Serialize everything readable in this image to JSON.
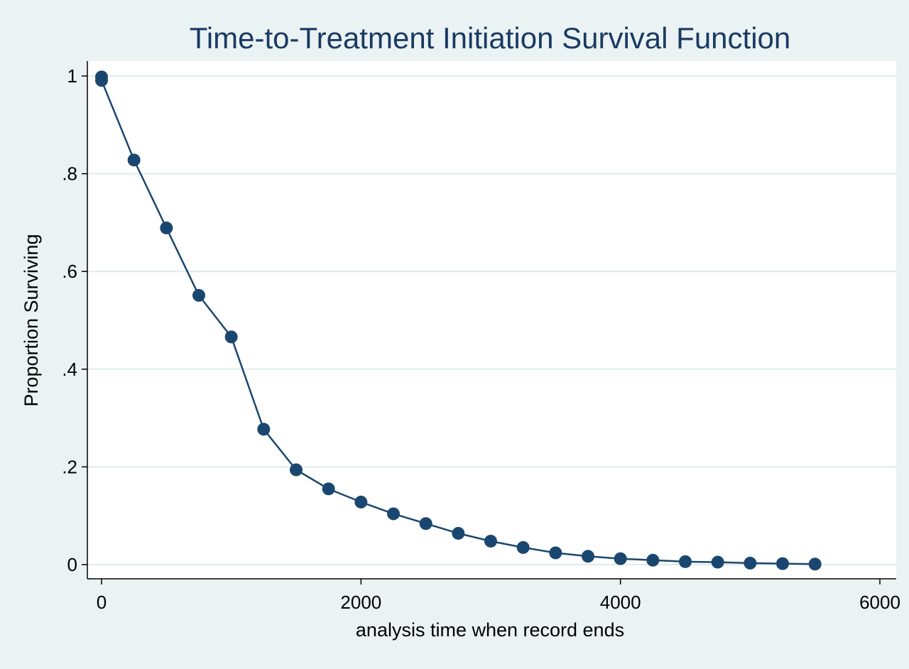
{
  "chart_data": {
    "type": "line",
    "title": "Time-to-Treatment Initiation Survival Function",
    "xlabel": "analysis time when record ends",
    "ylabel": "Proportion Surviving",
    "xlim": [
      0,
      6000
    ],
    "ylim": [
      0,
      1
    ],
    "x_ticks": [
      0,
      2000,
      4000,
      6000
    ],
    "x_tick_labels": [
      "0",
      "2000",
      "4000",
      "6000"
    ],
    "y_ticks": [
      0,
      0.2,
      0.4,
      0.6,
      0.8,
      1
    ],
    "y_tick_labels": [
      "0",
      ".2",
      ".4",
      ".6",
      ".8",
      "1"
    ],
    "grid": true,
    "series": [
      {
        "x": [
          0,
          0,
          250,
          500,
          750,
          1000,
          1250,
          1500,
          1750,
          2000,
          2250,
          2500,
          2750,
          3000,
          3250,
          3500,
          3750,
          4000,
          4250,
          4500,
          4750,
          5000,
          5250,
          5500
        ],
        "y": [
          0.998,
          0.991,
          0.828,
          0.689,
          0.551,
          0.466,
          0.277,
          0.194,
          0.155,
          0.128,
          0.104,
          0.084,
          0.064,
          0.048,
          0.035,
          0.024,
          0.017,
          0.012,
          0.009,
          0.006,
          0.005,
          0.003,
          0.002,
          0.001
        ]
      }
    ]
  },
  "colors": {
    "background": "#eaf2f3",
    "plot_area": "#ffffff",
    "series": "#1a476f",
    "title": "#1a3a63",
    "grid": "#e1ebee",
    "axis": "#000000"
  }
}
